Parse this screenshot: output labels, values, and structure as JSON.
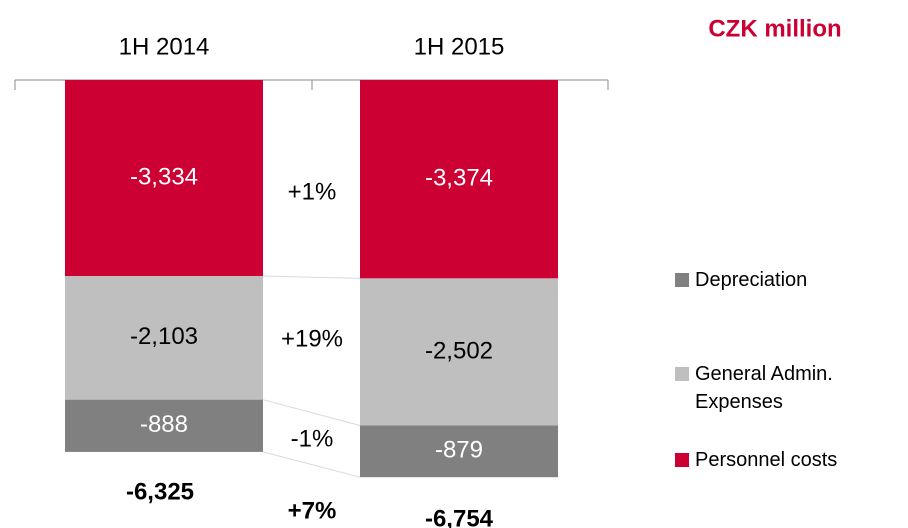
{
  "chart_data": {
    "type": "stacked-bar",
    "unit_label": "CZK million",
    "categories": [
      "1H 2014",
      "1H 2015"
    ],
    "series": [
      {
        "name": "Personnel costs",
        "color": "#cc0033",
        "label_color": "#ffffff",
        "values": [
          -3334,
          -3374
        ],
        "value_labels": [
          "-3,334",
          "-3,374"
        ]
      },
      {
        "name": "General Admin. Expenses",
        "color": "#bfbfbf",
        "label_color": "#000000",
        "values": [
          -2103,
          -2502
        ],
        "value_labels": [
          "-2,103",
          "-2,502"
        ]
      },
      {
        "name": "Depreciation",
        "color": "#808080",
        "label_color": "#ffffff",
        "values": [
          -888,
          -879
        ],
        "value_labels": [
          "-888",
          "-879"
        ]
      }
    ],
    "totals": [
      -6325,
      -6754
    ],
    "total_labels": [
      "-6,325",
      "-6,754"
    ],
    "annotations": [
      "+1%",
      "+19%",
      "-1%",
      "+7%"
    ],
    "ylim": [
      -7500,
      0
    ]
  }
}
